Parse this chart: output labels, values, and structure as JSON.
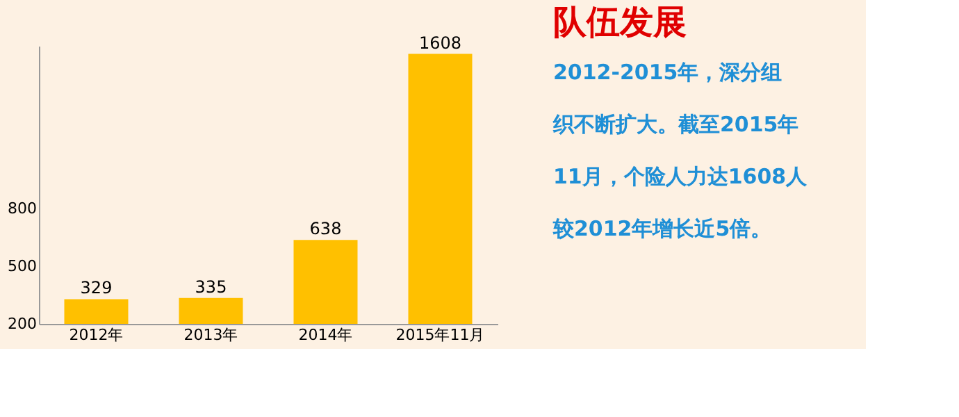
{
  "chart_data": {
    "type": "bar",
    "title": "队伍发展",
    "categories": [
      "2012年",
      "2013年",
      "2014年",
      "2015年11月"
    ],
    "values": [
      329,
      335,
      638,
      1608
    ],
    "color": "#ffc000",
    "ylim": [
      200,
      1650
    ],
    "yticks": [
      200,
      500,
      800
    ],
    "grid": false,
    "data_labels": true,
    "annotations": [
      "2012-2015年，深分组",
      "织不断扩大。截至2015年",
      "11月，个险人力达1608人",
      "较2012年增长近5倍。"
    ]
  }
}
